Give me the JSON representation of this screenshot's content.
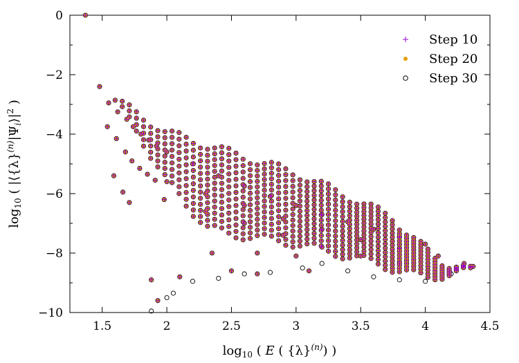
{
  "chart_data": {
    "type": "scatter",
    "title": "",
    "xlabel": "log10 ( E ( {λ}^(n) ) )",
    "ylabel": "log10 ( |⟨{λ}^(n)|Ψi⟩|^2 )",
    "xlim": [
      1.25,
      4.5
    ],
    "ylim": [
      -10,
      0
    ],
    "x_ticks": [
      1.5,
      2,
      2.5,
      3,
      3.5,
      4,
      4.5
    ],
    "x_tick_labels": [
      "1.5",
      "2",
      "2.5",
      "3",
      "3.5",
      "4",
      "4.5"
    ],
    "y_ticks": [
      -10,
      -8,
      -6,
      -4,
      -2,
      0
    ],
    "y_tick_labels": [
      "−10",
      "−8",
      "−6",
      "−4",
      "−2",
      "0"
    ],
    "grid": false,
    "legend_position": "top-right",
    "series": [
      {
        "name": "Step 10",
        "marker": "plus",
        "color": "#9400d3"
      },
      {
        "name": "Step 20",
        "marker": "filled-circle",
        "color": "#e69f00"
      },
      {
        "name": "Step 30",
        "marker": "open-circle",
        "color": "#000000"
      }
    ],
    "shared_points": [
      [
        1.37,
        0.0
      ],
      [
        1.48,
        -2.4
      ],
      [
        1.55,
        -2.95
      ],
      [
        1.54,
        -3.75
      ],
      [
        1.62,
        -3.25
      ],
      [
        1.61,
        -4.15
      ],
      [
        1.59,
        -5.4
      ],
      [
        1.69,
        -3.5
      ],
      [
        1.68,
        -4.6
      ],
      [
        1.66,
        -5.95
      ],
      [
        1.74,
        -3.75
      ],
      [
        1.73,
        -4.9
      ],
      [
        1.71,
        -6.3
      ],
      [
        1.8,
        -4.0
      ],
      [
        1.79,
        -5.15
      ],
      [
        1.86,
        -4.2
      ],
      [
        1.85,
        -5.35
      ],
      [
        1.92,
        -4.4
      ],
      [
        1.91,
        -5.55
      ],
      [
        2.0,
        -4.6
      ],
      [
        2.2,
        -5.0
      ],
      [
        2.4,
        -5.4
      ],
      [
        2.6,
        -5.75
      ],
      [
        2.8,
        -6.1
      ],
      [
        3.0,
        -6.4
      ],
      [
        3.2,
        -6.7
      ],
      [
        3.4,
        -6.95
      ],
      [
        3.6,
        -7.2
      ],
      [
        3.8,
        -7.45
      ],
      [
        4.0,
        -7.7
      ],
      [
        4.37,
        -8.45
      ],
      [
        2.0,
        -5.6
      ],
      [
        2.3,
        -6.0
      ],
      [
        2.6,
        -6.4
      ],
      [
        2.9,
        -6.85
      ],
      [
        3.2,
        -7.2
      ],
      [
        3.5,
        -7.55
      ],
      [
        3.8,
        -7.85
      ],
      [
        4.1,
        -8.1
      ],
      [
        4.3,
        -8.35
      ],
      [
        1.98,
        -6.2
      ],
      [
        2.3,
        -6.6
      ],
      [
        2.6,
        -7.0
      ],
      [
        2.9,
        -7.4
      ],
      [
        3.2,
        -7.8
      ],
      [
        3.5,
        -8.1
      ],
      [
        3.8,
        -8.35
      ],
      [
        2.1,
        -8.8
      ],
      [
        2.5,
        -8.6
      ],
      [
        2.7,
        -8.7
      ],
      [
        2.35,
        -8.0
      ],
      [
        2.7,
        -8.0
      ],
      [
        3.0,
        -8.1
      ],
      [
        3.1,
        -8.6
      ],
      [
        1.93,
        -9.6
      ],
      [
        1.88,
        -8.9
      ]
    ],
    "step30_only_points": [
      [
        2.0,
        -9.5
      ],
      [
        2.05,
        -9.35
      ],
      [
        1.88,
        -9.95
      ],
      [
        2.2,
        -8.95
      ],
      [
        2.4,
        -8.85
      ],
      [
        2.6,
        -8.7
      ],
      [
        2.8,
        -8.65
      ],
      [
        3.05,
        -8.5
      ],
      [
        3.2,
        -8.35
      ],
      [
        3.4,
        -8.6
      ],
      [
        3.6,
        -8.8
      ],
      [
        3.8,
        -8.9
      ],
      [
        4.0,
        -8.95
      ],
      [
        4.2,
        -8.7
      ]
    ],
    "band_ranges": {
      "top_envelope": [
        [
          1.48,
          -2.4
        ],
        [
          2.0,
          -3.8
        ],
        [
          2.5,
          -4.5
        ],
        [
          3.0,
          -5.2
        ],
        [
          3.5,
          -6.2
        ],
        [
          4.0,
          -7.3
        ],
        [
          4.37,
          -8.45
        ]
      ],
      "bottom_envelope": [
        [
          1.59,
          -5.4
        ],
        [
          2.0,
          -7.0
        ],
        [
          2.5,
          -7.5
        ],
        [
          3.0,
          -7.8
        ],
        [
          3.5,
          -8.3
        ],
        [
          4.0,
          -8.9
        ],
        [
          4.37,
          -8.6
        ]
      ]
    }
  }
}
